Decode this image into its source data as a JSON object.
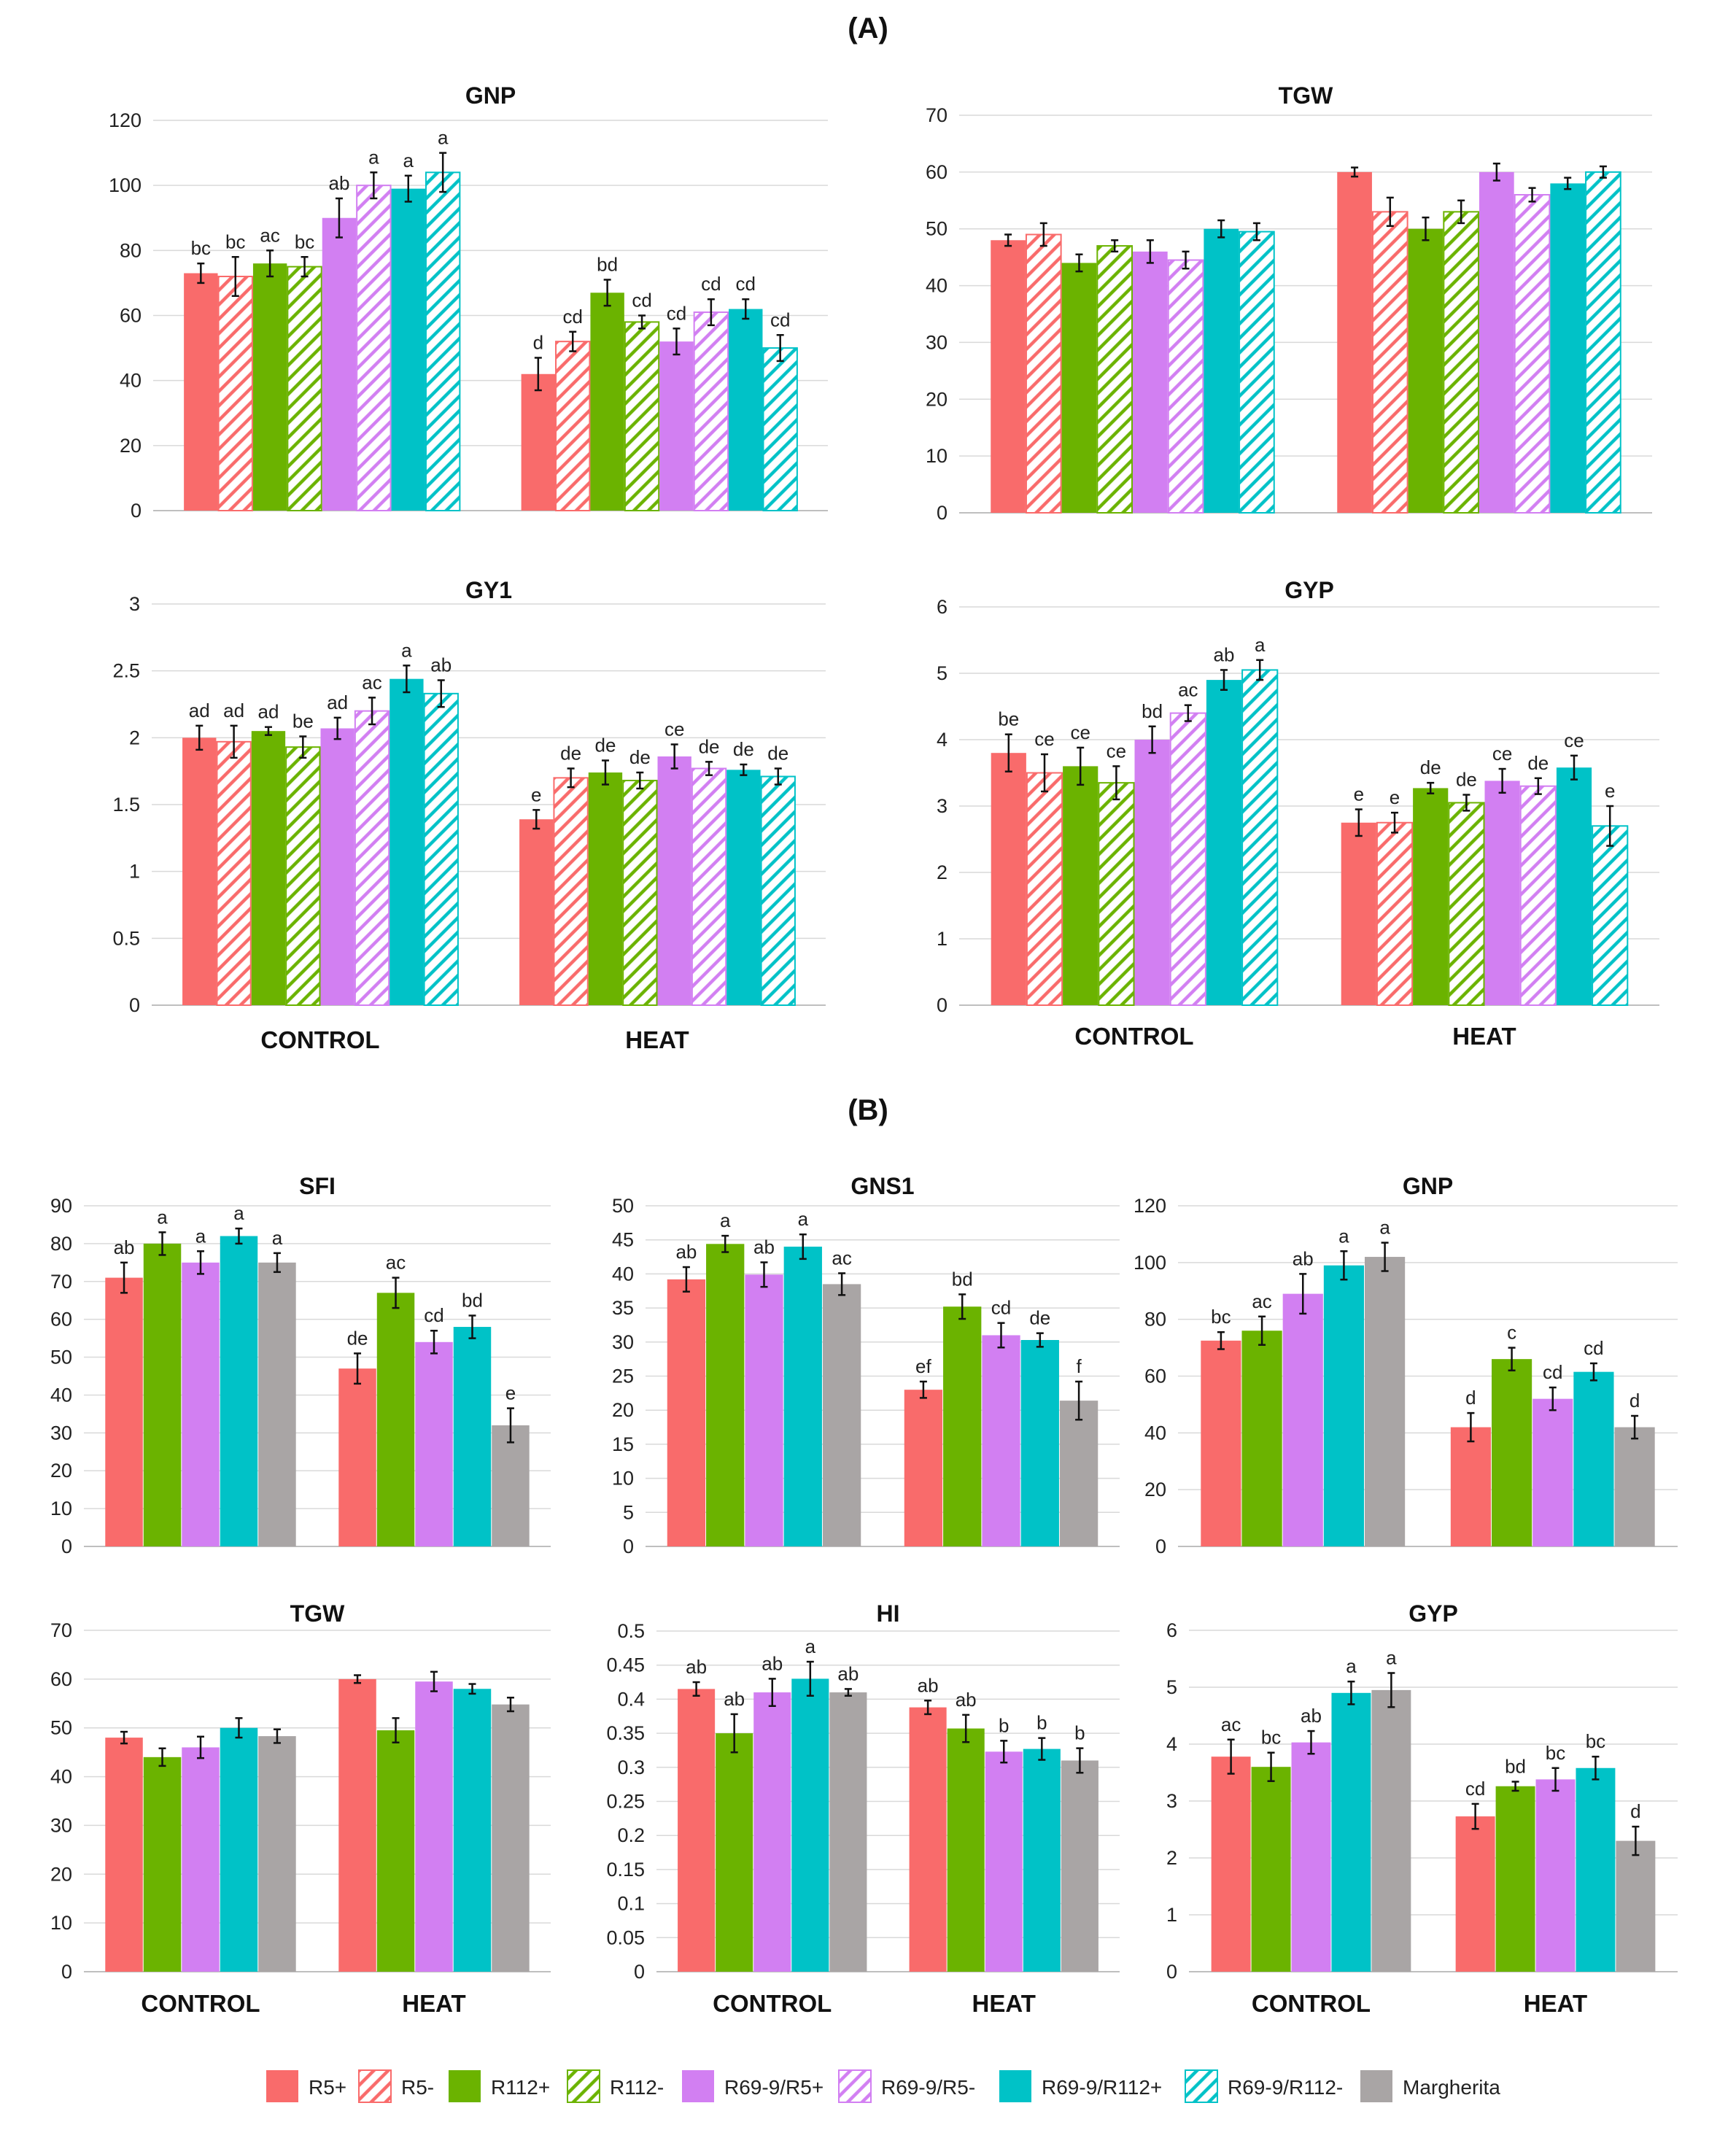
{
  "panels": {
    "A": "(A)",
    "B": "(B)"
  },
  "palette": {
    "R5": "#f96b6b",
    "R112": "#6bb300",
    "R69-9/R5": "#d27ff2",
    "R69-9/R112": "#00c2c7",
    "Margherita": "#a9a5a5"
  },
  "legend": [
    {
      "label": "R5+",
      "color": "#f96b6b",
      "pattern": "solid"
    },
    {
      "label": "R5-",
      "color": "#f96b6b",
      "pattern": "hatch"
    },
    {
      "label": "R112+",
      "color": "#6bb300",
      "pattern": "solid"
    },
    {
      "label": "R112-",
      "color": "#6bb300",
      "pattern": "hatch"
    },
    {
      "label": "R69-9/R5+",
      "color": "#d27ff2",
      "pattern": "solid"
    },
    {
      "label": "R69-9/R5-",
      "color": "#d27ff2",
      "pattern": "hatch"
    },
    {
      "label": "R69-9/R112+",
      "color": "#00c2c7",
      "pattern": "solid"
    },
    {
      "label": "R69-9/R112-",
      "color": "#00c2c7",
      "pattern": "hatch"
    },
    {
      "label": "Margherita",
      "color": "#a9a5a5",
      "pattern": "solid"
    }
  ],
  "chart_data": [
    {
      "panel": "A",
      "type": "bar",
      "title": "GNP",
      "categories": [
        "",
        ""
      ],
      "ylim": [
        0,
        120
      ],
      "yticks": [
        0,
        20,
        40,
        60,
        80,
        100,
        120
      ],
      "series": [
        "R5+",
        "R5-",
        "R112+",
        "R112-",
        "R69-9/R5+",
        "R69-9/R5-",
        "R69-9/R112+",
        "R69-9/R112-"
      ],
      "values": [
        [
          73,
          72,
          76,
          75,
          90,
          100,
          99,
          104
        ],
        [
          42,
          52,
          67,
          58,
          52,
          61,
          62,
          50
        ]
      ],
      "errors": [
        [
          3,
          6,
          4,
          3,
          6,
          4,
          4,
          6
        ],
        [
          5,
          3,
          4,
          2,
          4,
          4,
          3,
          4
        ]
      ],
      "letters": [
        [
          "bc",
          "bc",
          "ac",
          "bc",
          "ab",
          "a",
          "a",
          "a"
        ],
        [
          "d",
          "cd",
          "bd",
          "cd",
          "cd",
          "cd",
          "cd",
          "cd"
        ]
      ]
    },
    {
      "panel": "A",
      "type": "bar",
      "title": "TGW",
      "categories": [
        "",
        ""
      ],
      "ylim": [
        0,
        70
      ],
      "yticks": [
        0,
        10,
        20,
        30,
        40,
        50,
        60,
        70
      ],
      "series": [
        "R5+",
        "R5-",
        "R112+",
        "R112-",
        "R69-9/R5+",
        "R69-9/R5-",
        "R69-9/R112+",
        "R69-9/R112-"
      ],
      "values": [
        [
          48,
          49,
          44,
          47,
          46,
          44.5,
          50,
          49.5
        ],
        [
          60,
          53,
          50,
          53,
          60,
          56,
          58,
          60
        ]
      ],
      "errors": [
        [
          1,
          2,
          1.5,
          1,
          2,
          1.5,
          1.5,
          1.5
        ],
        [
          0.8,
          2.5,
          2,
          2,
          1.5,
          1.2,
          1,
          1
        ]
      ],
      "letters": [
        [
          "",
          "",
          "",
          "",
          "",
          "",
          "",
          ""
        ],
        [
          "",
          "",
          "",
          "",
          "",
          "",
          "",
          ""
        ]
      ]
    },
    {
      "panel": "A",
      "type": "bar",
      "title": "GY1",
      "categories": [
        "CONTROL",
        "HEAT"
      ],
      "ylim": [
        0,
        3
      ],
      "yticks": [
        0,
        0.5,
        1,
        1.5,
        2,
        2.5,
        3
      ],
      "series": [
        "R5+",
        "R5-",
        "R112+",
        "R112-",
        "R69-9/R5+",
        "R69-9/R5-",
        "R69-9/R112+",
        "R69-9/R112-"
      ],
      "values": [
        [
          2.0,
          1.97,
          2.05,
          1.93,
          2.07,
          2.2,
          2.44,
          2.33
        ],
        [
          1.39,
          1.7,
          1.74,
          1.68,
          1.86,
          1.77,
          1.76,
          1.71
        ]
      ],
      "errors": [
        [
          0.09,
          0.12,
          0.03,
          0.08,
          0.08,
          0.1,
          0.1,
          0.1
        ],
        [
          0.07,
          0.07,
          0.09,
          0.06,
          0.09,
          0.05,
          0.04,
          0.06
        ]
      ],
      "letters": [
        [
          "ad",
          "ad",
          "ad",
          "be",
          "ad",
          "ac",
          "a",
          "ab"
        ],
        [
          "e",
          "de",
          "de",
          "de",
          "ce",
          "de",
          "de",
          "de"
        ]
      ]
    },
    {
      "panel": "A",
      "type": "bar",
      "title": "GYP",
      "categories": [
        "CONTROL",
        "HEAT"
      ],
      "ylim": [
        0,
        6
      ],
      "yticks": [
        0,
        1,
        2,
        3,
        4,
        5,
        6
      ],
      "series": [
        "R5+",
        "R5-",
        "R112+",
        "R112-",
        "R69-9/R5+",
        "R69-9/R5-",
        "R69-9/R112+",
        "R69-9/R112-"
      ],
      "values": [
        [
          3.8,
          3.5,
          3.6,
          3.35,
          4.0,
          4.4,
          4.9,
          5.05
        ],
        [
          2.75,
          2.75,
          3.27,
          3.05,
          3.38,
          3.3,
          3.58,
          2.7
        ]
      ],
      "errors": [
        [
          0.28,
          0.28,
          0.28,
          0.25,
          0.2,
          0.12,
          0.15,
          0.15
        ],
        [
          0.2,
          0.15,
          0.08,
          0.12,
          0.18,
          0.12,
          0.18,
          0.3
        ]
      ],
      "letters": [
        [
          "be",
          "ce",
          "ce",
          "ce",
          "bd",
          "ac",
          "ab",
          "a"
        ],
        [
          "e",
          "e",
          "de",
          "de",
          "ce",
          "de",
          "ce",
          "e"
        ]
      ]
    },
    {
      "panel": "B",
      "type": "bar",
      "title": "SFI",
      "categories": [
        "",
        ""
      ],
      "ylim": [
        0,
        90
      ],
      "yticks": [
        0,
        10,
        20,
        30,
        40,
        50,
        60,
        70,
        80,
        90
      ],
      "series": [
        "R5+",
        "R112+",
        "R69-9/R5+",
        "R69-9/R112+",
        "Margherita"
      ],
      "values": [
        [
          71,
          80,
          75,
          82,
          75
        ],
        [
          47,
          67,
          54,
          58,
          32
        ]
      ],
      "errors": [
        [
          4,
          3,
          3,
          2,
          2.5
        ],
        [
          4,
          4,
          3,
          3,
          4.5
        ]
      ],
      "letters": [
        [
          "ab",
          "a",
          "a",
          "a",
          "a"
        ],
        [
          "de",
          "ac",
          "cd",
          "bd",
          "e"
        ]
      ]
    },
    {
      "panel": "B",
      "type": "bar",
      "title": "GNS1",
      "categories": [
        "",
        ""
      ],
      "ylim": [
        0,
        50
      ],
      "yticks": [
        0,
        5,
        10,
        15,
        20,
        25,
        30,
        35,
        40,
        45,
        50
      ],
      "series": [
        "R5+",
        "R112+",
        "R69-9/R5+",
        "R69-9/R112+",
        "Margherita"
      ],
      "values": [
        [
          39.2,
          44.4,
          39.9,
          44,
          38.5
        ],
        [
          23,
          35.2,
          31,
          30.3,
          21.4
        ]
      ],
      "errors": [
        [
          1.8,
          1.2,
          1.8,
          1.8,
          1.6
        ],
        [
          1.2,
          1.8,
          1.8,
          1,
          2.8
        ]
      ],
      "letters": [
        [
          "ab",
          "a",
          "ab",
          "a",
          "ac"
        ],
        [
          "ef",
          "bd",
          "cd",
          "de",
          "f"
        ]
      ]
    },
    {
      "panel": "B",
      "type": "bar",
      "title": "GNP",
      "categories": [
        "",
        ""
      ],
      "ylim": [
        0,
        120
      ],
      "yticks": [
        0,
        20,
        40,
        60,
        80,
        100,
        120
      ],
      "series": [
        "R5+",
        "R112+",
        "R69-9/R5+",
        "R69-9/R112+",
        "Margherita"
      ],
      "values": [
        [
          72.5,
          76,
          89,
          99,
          102
        ],
        [
          42,
          66,
          52,
          61.5,
          42
        ]
      ],
      "errors": [
        [
          3,
          5,
          7,
          5,
          5
        ],
        [
          5,
          4,
          4,
          3,
          4
        ]
      ],
      "letters": [
        [
          "bc",
          "ac",
          "ab",
          "a",
          "a"
        ],
        [
          "d",
          "c",
          "cd",
          "cd",
          "d"
        ]
      ]
    },
    {
      "panel": "B",
      "type": "bar",
      "title": "TGW",
      "categories": [
        "CONTROL",
        "HEAT"
      ],
      "ylim": [
        0,
        70
      ],
      "yticks": [
        0,
        10,
        20,
        30,
        40,
        50,
        60,
        70
      ],
      "series": [
        "R5+",
        "R112+",
        "R69-9/R5+",
        "R69-9/R112+",
        "Margherita"
      ],
      "values": [
        [
          48,
          44,
          46,
          50,
          48.3
        ],
        [
          60,
          49.5,
          59.5,
          58,
          54.8
        ]
      ],
      "errors": [
        [
          1.2,
          1.8,
          2.2,
          2,
          1.4
        ],
        [
          0.8,
          2.5,
          2,
          1,
          1.4
        ]
      ],
      "letters": [
        [
          "",
          "",
          "",
          "",
          ""
        ],
        [
          "",
          "",
          "",
          "",
          ""
        ]
      ]
    },
    {
      "panel": "B",
      "type": "bar",
      "title": "HI",
      "categories": [
        "CONTROL",
        "HEAT"
      ],
      "ylim": [
        0,
        0.5
      ],
      "yticks": [
        0,
        0.05,
        0.1,
        0.15,
        0.2,
        0.25,
        0.3,
        0.35,
        0.4,
        0.45,
        0.5
      ],
      "series": [
        "R5+",
        "R112+",
        "R69-9/R5+",
        "R69-9/R112+",
        "Margherita"
      ],
      "values": [
        [
          0.415,
          0.35,
          0.41,
          0.43,
          0.41
        ],
        [
          0.388,
          0.357,
          0.323,
          0.327,
          0.31
        ]
      ],
      "errors": [
        [
          0.01,
          0.028,
          0.02,
          0.025,
          0.005
        ],
        [
          0.01,
          0.02,
          0.016,
          0.016,
          0.018
        ]
      ],
      "letters": [
        [
          "ab",
          "ab",
          "ab",
          "a",
          "ab"
        ],
        [
          "ab",
          "ab",
          "b",
          "b",
          "b"
        ]
      ]
    },
    {
      "panel": "B",
      "type": "bar",
      "title": "GYP",
      "categories": [
        "CONTROL",
        "HEAT"
      ],
      "ylim": [
        0,
        6
      ],
      "yticks": [
        0,
        1,
        2,
        3,
        4,
        5,
        6
      ],
      "series": [
        "R5+",
        "R112+",
        "R69-9/R5+",
        "R69-9/R112+",
        "Margherita"
      ],
      "values": [
        [
          3.78,
          3.6,
          4.03,
          4.9,
          4.95
        ],
        [
          2.73,
          3.26,
          3.38,
          3.58,
          2.3
        ]
      ],
      "errors": [
        [
          0.3,
          0.25,
          0.2,
          0.2,
          0.3
        ],
        [
          0.22,
          0.08,
          0.2,
          0.2,
          0.25
        ]
      ],
      "letters": [
        [
          "ac",
          "bc",
          "ab",
          "a",
          "a"
        ],
        [
          "cd",
          "bd",
          "bc",
          "bc",
          "d"
        ]
      ]
    }
  ]
}
